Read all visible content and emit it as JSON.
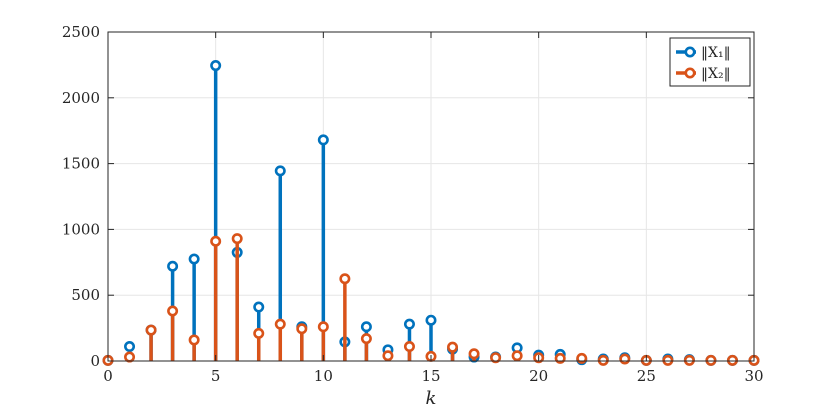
{
  "chart_data": {
    "type": "stem",
    "xlabel": "k",
    "ylabel": "",
    "title": "",
    "xlim": [
      0,
      30
    ],
    "ylim": [
      0,
      2500
    ],
    "xticks": [
      0,
      5,
      10,
      15,
      20,
      25,
      30
    ],
    "yticks": [
      0,
      500,
      1000,
      1500,
      2000,
      2500
    ],
    "grid": true,
    "legend_position": "top-right",
    "series": [
      {
        "name": "‖X₁‖",
        "color": "#0072BD",
        "x": [
          0,
          1,
          2,
          3,
          4,
          5,
          6,
          7,
          8,
          9,
          10,
          11,
          12,
          13,
          14,
          15,
          16,
          17,
          18,
          19,
          20,
          21,
          22,
          23,
          24,
          25,
          26,
          27,
          28,
          29,
          30
        ],
        "values": [
          5,
          110,
          235,
          720,
          775,
          2245,
          825,
          410,
          1445,
          260,
          1680,
          145,
          260,
          85,
          280,
          310,
          90,
          30,
          30,
          100,
          45,
          50,
          10,
          15,
          25,
          5,
          15,
          10,
          5,
          5,
          5
        ]
      },
      {
        "name": "‖X₂‖",
        "color": "#D95319",
        "x": [
          0,
          1,
          2,
          3,
          4,
          5,
          6,
          7,
          8,
          9,
          10,
          11,
          12,
          13,
          14,
          15,
          16,
          17,
          18,
          19,
          20,
          21,
          22,
          23,
          24,
          25,
          26,
          27,
          28,
          29,
          30
        ],
        "values": [
          5,
          30,
          235,
          380,
          160,
          910,
          930,
          210,
          280,
          245,
          260,
          625,
          170,
          40,
          110,
          35,
          105,
          55,
          25,
          40,
          25,
          20,
          20,
          5,
          15,
          5,
          5,
          5,
          5,
          5,
          5
        ]
      }
    ]
  }
}
